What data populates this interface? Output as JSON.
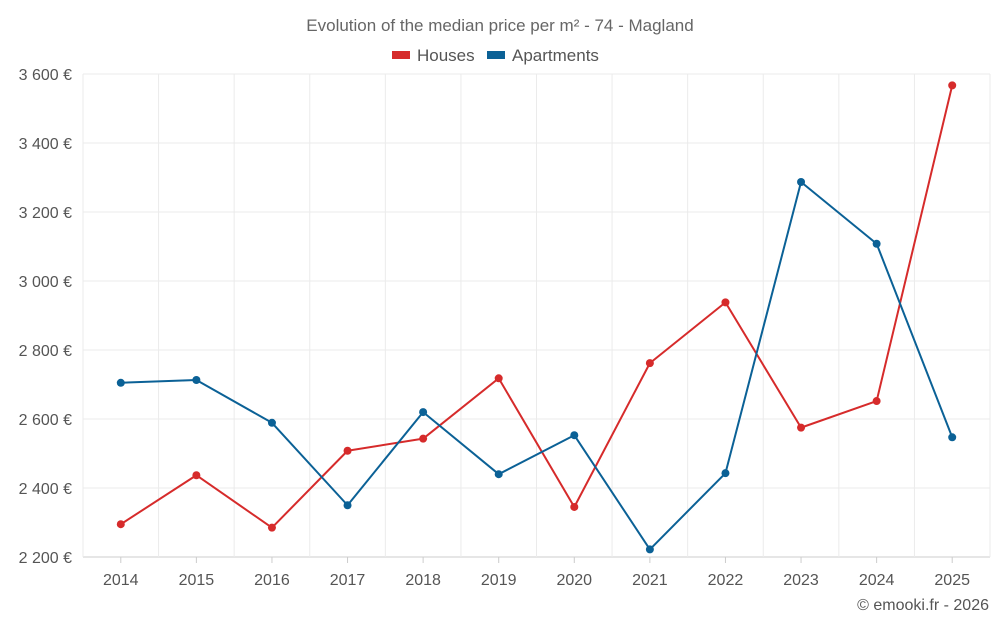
{
  "colors": {
    "houses": "#d62b2b",
    "apartments": "#0b6196"
  },
  "credit": "© emooki.fr - 2026",
  "chart_data": {
    "type": "line",
    "title": "Evolution of the median price per m² - 74 - Magland",
    "xlabel": "",
    "ylabel": "",
    "categories": [
      "2014",
      "2015",
      "2016",
      "2017",
      "2018",
      "2019",
      "2020",
      "2021",
      "2022",
      "2023",
      "2024",
      "2025"
    ],
    "ylim": [
      2200,
      3600
    ],
    "yticks": [
      2200,
      2400,
      2600,
      2800,
      3000,
      3200,
      3400,
      3600
    ],
    "ytick_labels": [
      "2 200 €",
      "2 400 €",
      "2 600 €",
      "2 800 €",
      "3 000 €",
      "3 200 €",
      "3 400 €",
      "3 600 €"
    ],
    "grid": true,
    "legend_position": "top-center",
    "series": [
      {
        "name": "Houses",
        "color": "#d62b2b",
        "values": [
          2295,
          2437,
          2285,
          2508,
          2543,
          2718,
          2345,
          2762,
          2938,
          2575,
          2652,
          3567
        ]
      },
      {
        "name": "Apartments",
        "color": "#0b6196",
        "values": [
          2705,
          2713,
          2589,
          2350,
          2620,
          2440,
          2553,
          2222,
          2443,
          3287,
          3108,
          2547
        ]
      }
    ]
  }
}
